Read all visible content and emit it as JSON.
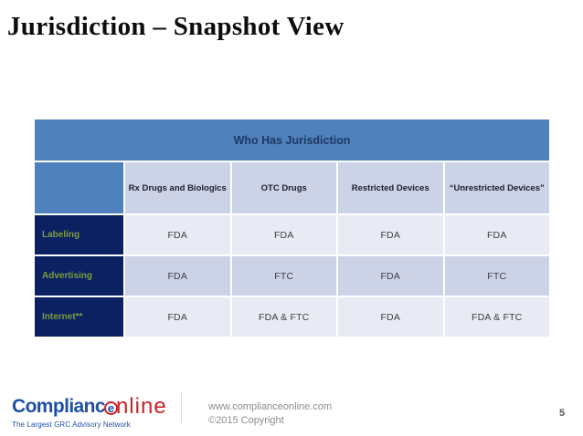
{
  "slide": {
    "title": "Jurisdiction – Snapshot View",
    "page_number": "5"
  },
  "table": {
    "title": "Who Has Jurisdiction",
    "columns": [
      "Rx Drugs and Biologics",
      "OTC Drugs",
      "Restricted Devices",
      "“Unrestricted Devices”"
    ],
    "rows": [
      {
        "label": "Labeling",
        "values": [
          "FDA",
          "FDA",
          "FDA",
          "FDA"
        ]
      },
      {
        "label": "Advertising",
        "values": [
          "FDA",
          "FTC",
          "FDA",
          "FTC"
        ]
      },
      {
        "label": "Internet**",
        "values": [
          "FDA",
          "FDA & FTC",
          "FDA",
          "FDA & FTC"
        ]
      }
    ]
  },
  "footer": {
    "logo": {
      "part1": "Complianc",
      "circled_letter": "e",
      "part2": "nline",
      "tagline": "The Largest GRC Advisory Network"
    },
    "website": "www.complianceonline.com",
    "copyright": "©2015 Copyright"
  },
  "colors": {
    "header_blue": "#4F81BD",
    "title_navy": "#1F3864",
    "navy_cell": "#0C2161",
    "olive_text": "#7E9C3E",
    "light_cell": "#E9EBF4",
    "band_cell": "#CCD3E6",
    "logo_blue": "#1F4FA5",
    "logo_red": "#CC2127"
  }
}
